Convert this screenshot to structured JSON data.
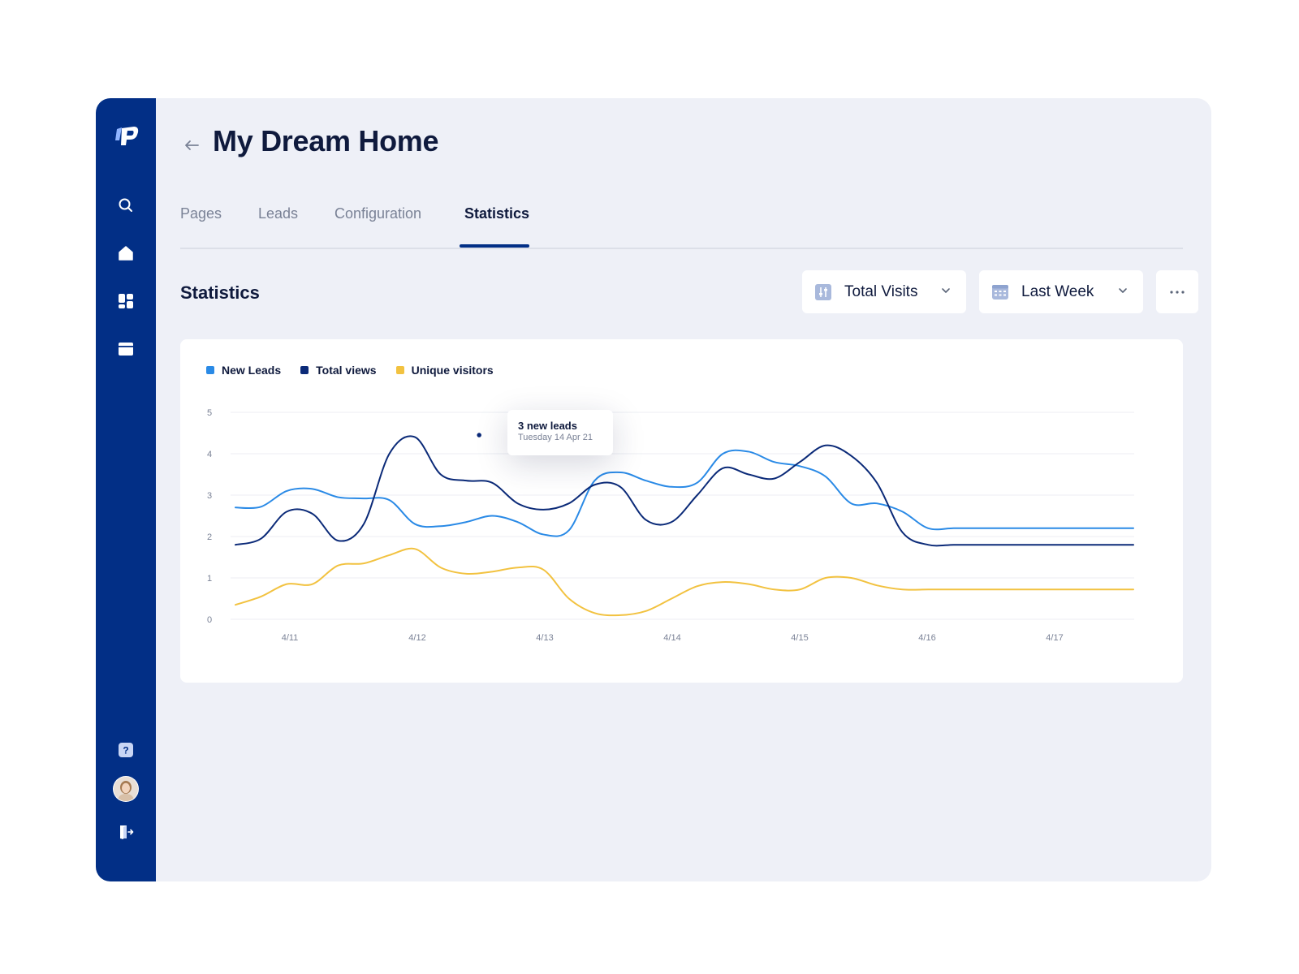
{
  "header": {
    "title": "My Dream Home"
  },
  "tabs": [
    {
      "label": "Pages",
      "active": false
    },
    {
      "label": "Leads",
      "active": false
    },
    {
      "label": "Configuration",
      "active": false
    },
    {
      "label": "Statistics",
      "active": true
    }
  ],
  "section": {
    "title": "Statistics"
  },
  "filters": {
    "metric": {
      "label": "Total Visits",
      "icon": "sliders-icon"
    },
    "period": {
      "label": "Last Week",
      "icon": "calendar-icon"
    }
  },
  "sidebar": {
    "top_icons": [
      "search-icon",
      "home-icon",
      "dashboard-icon",
      "browser-icon"
    ],
    "bottom_icons": [
      "help-icon",
      "avatar",
      "logout-icon"
    ]
  },
  "colors": {
    "sidebar": "#022f86",
    "new_leads": "#2a8ae6",
    "total_views": "#0b2a78",
    "unique_visitors": "#f2c240"
  },
  "tooltip": {
    "title": "3 new leads",
    "subtitle": "Tuesday 14 Apr 21"
  },
  "chart_data": {
    "type": "line",
    "x_ticks": [
      "4/11",
      "4/12",
      "4/13",
      "4/14",
      "4/15",
      "4/16",
      "4/17"
    ],
    "y_ticks": [
      0,
      1,
      2,
      3,
      4,
      5
    ],
    "ylim": [
      0,
      5
    ],
    "x": [
      0,
      0.2,
      0.4,
      0.6,
      0.8,
      1.0,
      1.2,
      1.4,
      1.6,
      1.8,
      2.0,
      2.2,
      2.4,
      2.6,
      2.8,
      3.0,
      3.2,
      3.4,
      3.6,
      3.8,
      4.0,
      4.2,
      4.4,
      4.6,
      4.8,
      5.0,
      5.2,
      5.4,
      5.6,
      5.8,
      6.0,
      6.2,
      6.4,
      6.6,
      6.8,
      7.0
    ],
    "series": [
      {
        "name": "New Leads",
        "color": "#2a8ae6",
        "values": [
          2.7,
          2.72,
          3.1,
          3.15,
          2.95,
          2.92,
          2.88,
          2.3,
          2.25,
          2.35,
          2.5,
          2.35,
          2.05,
          2.15,
          3.35,
          3.55,
          3.35,
          3.2,
          3.3,
          4.0,
          4.05,
          3.8,
          3.7,
          3.45,
          2.8,
          2.8,
          2.6,
          2.2,
          2.2,
          2.2,
          2.2,
          2.2,
          2.2,
          2.2,
          2.2,
          2.2
        ]
      },
      {
        "name": "Total views",
        "color": "#0b2a78",
        "values": [
          1.8,
          1.95,
          2.6,
          2.55,
          1.9,
          2.3,
          4.0,
          4.4,
          3.5,
          3.35,
          3.3,
          2.8,
          2.65,
          2.8,
          3.25,
          3.2,
          2.4,
          2.35,
          3.0,
          3.65,
          3.5,
          3.4,
          3.8,
          4.2,
          3.95,
          3.3,
          2.1,
          1.8,
          1.8,
          1.8,
          1.8,
          1.8,
          1.8,
          1.8,
          1.8,
          1.8
        ]
      },
      {
        "name": "Unique visitors",
        "color": "#f2c240",
        "values": [
          0.35,
          0.55,
          0.85,
          0.85,
          1.3,
          1.35,
          1.55,
          1.7,
          1.25,
          1.1,
          1.15,
          1.25,
          1.2,
          0.5,
          0.15,
          0.1,
          0.2,
          0.5,
          0.8,
          0.9,
          0.85,
          0.72,
          0.72,
          1.0,
          1.0,
          0.82,
          0.72,
          0.72,
          0.72,
          0.72,
          0.72,
          0.72,
          0.72,
          0.72,
          0.72,
          0.72
        ]
      }
    ],
    "highlight": {
      "series": "Total views",
      "x": 1.9,
      "y": 4.45
    },
    "grid": true,
    "legend": "top-left"
  }
}
